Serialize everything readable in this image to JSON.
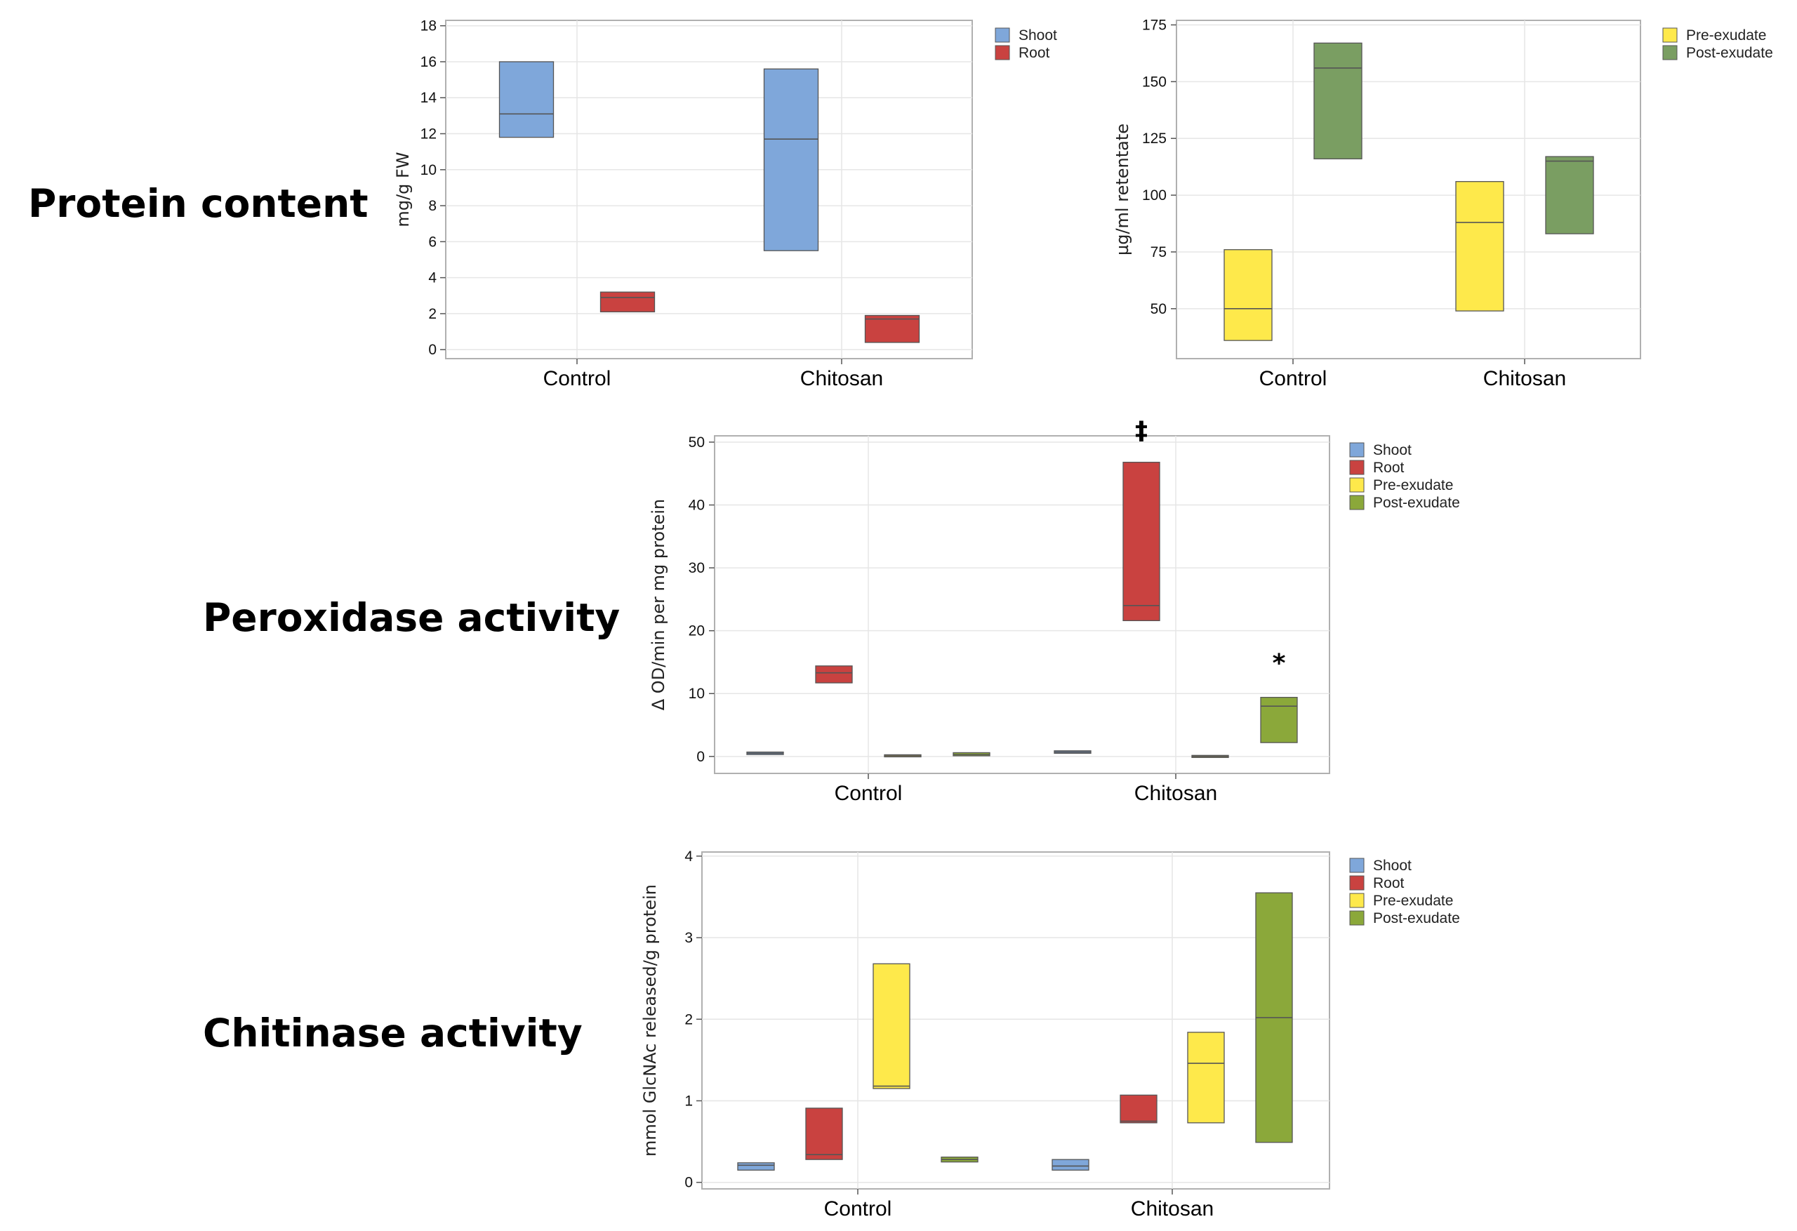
{
  "row_labels": {
    "protein": "Protein content",
    "peroxidase": "Peroxidase activity",
    "chitinase": "Chitinase activity"
  },
  "colors": {
    "shoot": "#7FA7DA",
    "root": "#C94240",
    "pre_exudate": "#FEE94B",
    "post_exudate_green": "#7A9E62",
    "post_exudate_olive": "#8BA83A",
    "grid": "#e6e6e6",
    "frame": "#b0b0b0",
    "median": "#555555"
  },
  "chart_data": [
    {
      "id": "protein_tissue",
      "type": "box",
      "title": "Protein content",
      "ylabel": "mg/g FW",
      "xlabel": "",
      "ylim": [
        -0.5,
        18.3
      ],
      "yticks": [
        0,
        2,
        4,
        6,
        8,
        10,
        12,
        14,
        16,
        18
      ],
      "categories": [
        "Control",
        "Chitosan"
      ],
      "legend": [
        "Shoot",
        "Root"
      ],
      "legend_position": "right",
      "series": [
        {
          "name": "Shoot",
          "color_key": "shoot",
          "boxes": [
            {
              "q1": 11.8,
              "median": 13.1,
              "q3": 16.0
            },
            {
              "q1": 5.5,
              "median": 11.7,
              "q3": 15.6
            }
          ]
        },
        {
          "name": "Root",
          "color_key": "root",
          "boxes": [
            {
              "q1": 2.1,
              "median": 2.9,
              "q3": 3.2
            },
            {
              "q1": 0.4,
              "median": 1.7,
              "q3": 1.9
            }
          ]
        }
      ]
    },
    {
      "id": "protein_exudate",
      "type": "box",
      "title": "Protein content",
      "ylabel": "µg/ml retentate",
      "xlabel": "",
      "ylim": [
        28,
        177
      ],
      "yticks": [
        50,
        75,
        100,
        125,
        150,
        175
      ],
      "categories": [
        "Control",
        "Chitosan"
      ],
      "legend": [
        "Pre-exudate",
        "Post-exudate"
      ],
      "legend_position": "right",
      "series": [
        {
          "name": "Pre-exudate",
          "color_key": "pre_exudate",
          "boxes": [
            {
              "q1": 36,
              "median": 50,
              "q3": 76
            },
            {
              "q1": 49,
              "median": 88,
              "q3": 106
            }
          ]
        },
        {
          "name": "Post-exudate",
          "color_key": "post_exudate_green",
          "boxes": [
            {
              "q1": 116,
              "median": 156,
              "q3": 167
            },
            {
              "q1": 83,
              "median": 115,
              "q3": 117
            }
          ]
        }
      ]
    },
    {
      "id": "peroxidase",
      "type": "box",
      "title": "Peroxidase activity",
      "ylabel": "Δ OD/min per mg protein",
      "xlabel": "",
      "ylim": [
        -2.7,
        51
      ],
      "yticks": [
        0,
        10,
        20,
        30,
        40,
        50
      ],
      "categories": [
        "Control",
        "Chitosan"
      ],
      "legend": [
        "Shoot",
        "Root",
        "Pre-exudate",
        "Post-exudate"
      ],
      "legend_position": "right",
      "annotations": [
        {
          "text": "‡",
          "category": "Chitosan",
          "series": "Root",
          "y": 50.5
        },
        {
          "text": "*",
          "category": "Chitosan",
          "series": "Post-exudate",
          "y": 13.5
        }
      ],
      "series": [
        {
          "name": "Shoot",
          "color_key": "shoot",
          "boxes": [
            {
              "q1": 0.3,
              "median": 0.5,
              "q3": 0.7
            },
            {
              "q1": 0.5,
              "median": 0.7,
              "q3": 0.9
            }
          ]
        },
        {
          "name": "Root",
          "color_key": "root",
          "boxes": [
            {
              "q1": 11.7,
              "median": 13.3,
              "q3": 14.4
            },
            {
              "q1": 21.6,
              "median": 24.0,
              "q3": 46.8
            }
          ]
        },
        {
          "name": "Pre-exudate",
          "color_key": "pre_exudate",
          "boxes": [
            {
              "q1": 0.0,
              "median": 0.1,
              "q3": 0.2
            },
            {
              "q1": -0.1,
              "median": 0.0,
              "q3": 0.1
            }
          ]
        },
        {
          "name": "Post-exudate",
          "color_key": "post_exudate_olive",
          "boxes": [
            {
              "q1": 0.1,
              "median": 0.3,
              "q3": 0.6
            },
            {
              "q1": 2.2,
              "median": 8.0,
              "q3": 9.4
            }
          ]
        }
      ]
    },
    {
      "id": "chitinase",
      "type": "box",
      "title": "Chitinase activity",
      "ylabel": "mmol GlcNAc released/g protein",
      "xlabel": "",
      "ylim": [
        -0.08,
        4.05
      ],
      "yticks": [
        0,
        1,
        2,
        3,
        4
      ],
      "categories": [
        "Control",
        "Chitosan"
      ],
      "legend": [
        "Shoot",
        "Root",
        "Pre-exudate",
        "Post-exudate"
      ],
      "legend_position": "right",
      "series": [
        {
          "name": "Shoot",
          "color_key": "shoot",
          "boxes": [
            {
              "q1": 0.15,
              "median": 0.21,
              "q3": 0.24
            },
            {
              "q1": 0.15,
              "median": 0.2,
              "q3": 0.28
            }
          ]
        },
        {
          "name": "Root",
          "color_key": "root",
          "boxes": [
            {
              "q1": 0.28,
              "median": 0.34,
              "q3": 0.91
            },
            {
              "q1": 0.73,
              "median": 0.75,
              "q3": 1.07
            }
          ]
        },
        {
          "name": "Pre-exudate",
          "color_key": "pre_exudate",
          "boxes": [
            {
              "q1": 1.15,
              "median": 1.18,
              "q3": 2.68
            },
            {
              "q1": 0.73,
              "median": 1.46,
              "q3": 1.84
            }
          ]
        },
        {
          "name": "Post-exudate",
          "color_key": "post_exudate_olive",
          "boxes": [
            {
              "q1": 0.25,
              "median": 0.28,
              "q3": 0.31
            },
            {
              "q1": 0.49,
              "median": 2.02,
              "q3": 3.55
            }
          ]
        }
      ]
    }
  ]
}
